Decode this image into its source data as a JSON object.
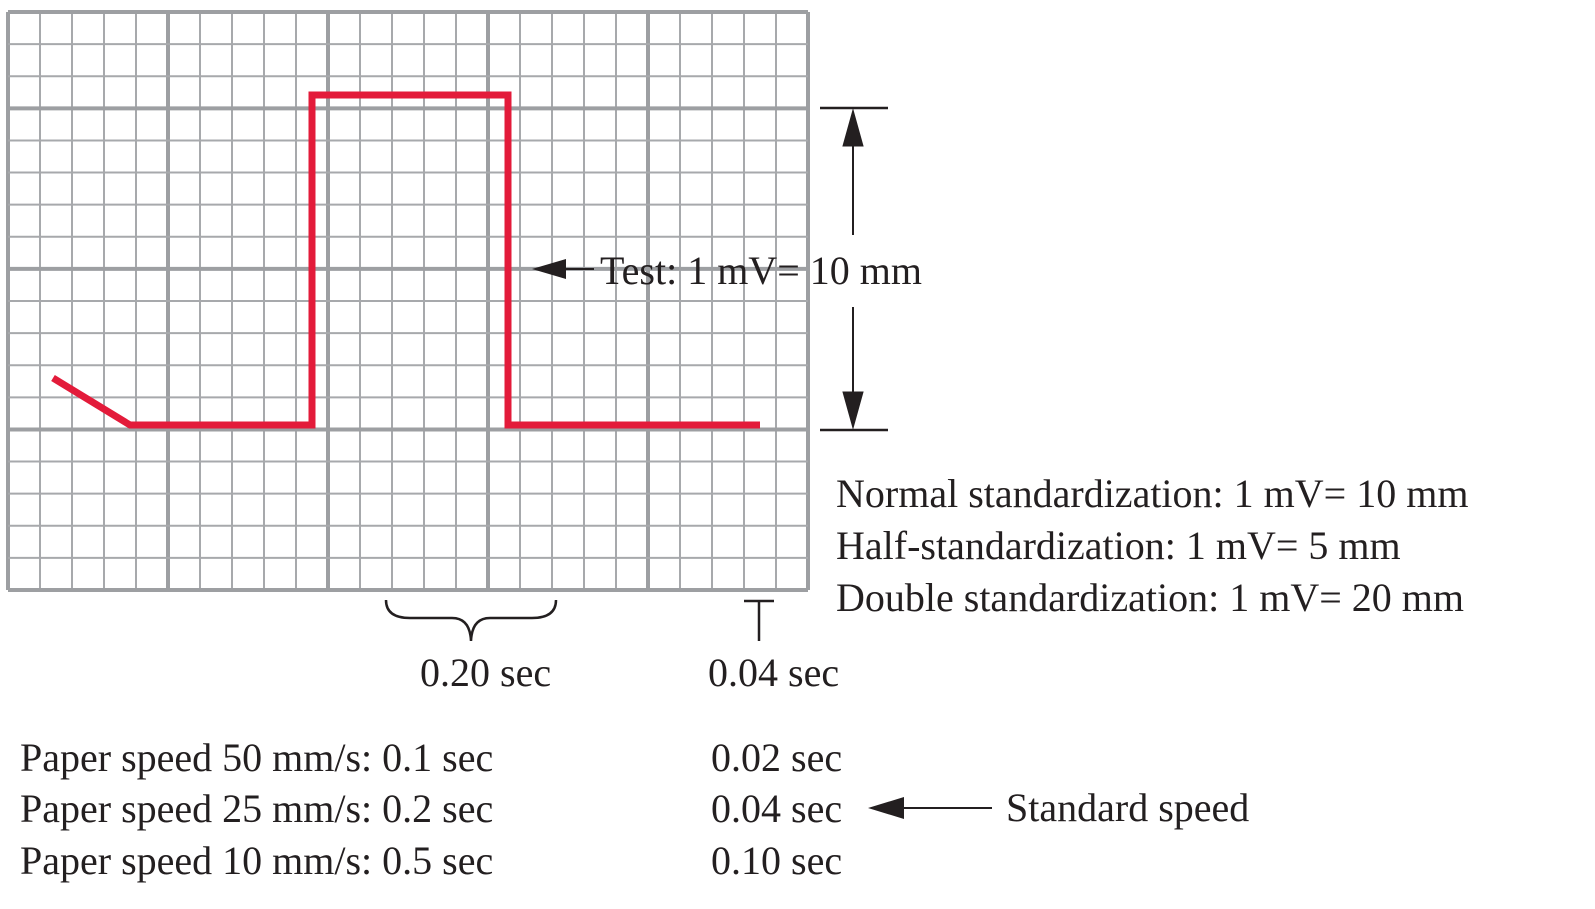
{
  "test_label": "Test: 1 mV= 10 mm",
  "standardization": {
    "normal": "Normal standardization: 1 mV= 10 mm",
    "half": "Half-standardization: 1 mV= 5 mm",
    "double": "Double standardization: 1 mV= 20 mm"
  },
  "intervals": {
    "large_box": "0.20 sec",
    "small_box": "0.04 sec"
  },
  "paper_speeds": [
    {
      "label": "Paper speed 50 mm/s: 0.1 sec",
      "small_box": "0.02 sec"
    },
    {
      "label": "Paper speed 25 mm/s: 0.2 sec",
      "small_box": "0.04 sec"
    },
    {
      "label": "Paper speed 10 mm/s: 0.5 sec",
      "small_box": "0.10 sec"
    }
  ],
  "standard_speed_label": "Standard speed",
  "colors": {
    "grid_minor": "#a7a9ac",
    "grid_major": "#9d9fa2",
    "trace": "#e31b3a",
    "text": "#231f20"
  }
}
